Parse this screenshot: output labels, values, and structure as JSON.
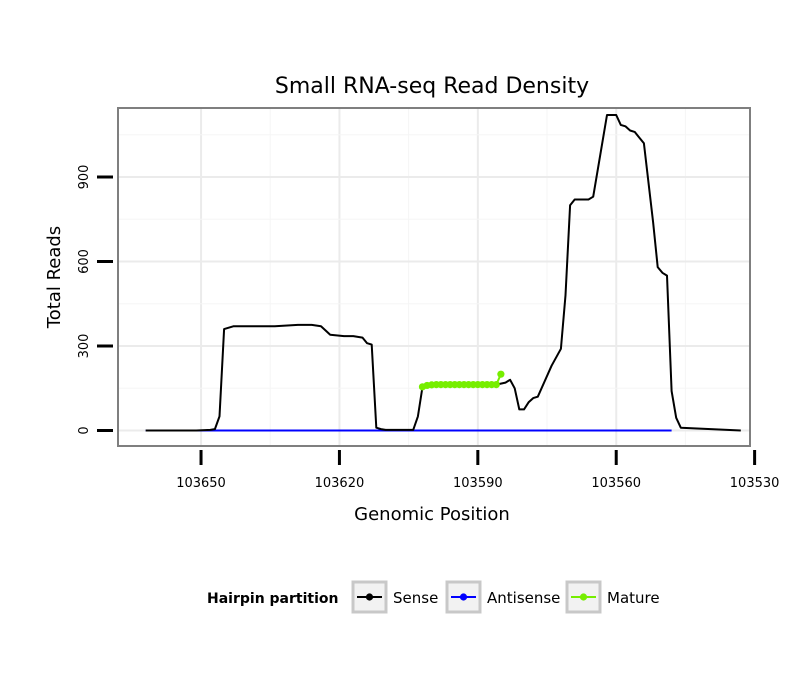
{
  "chart_data": {
    "type": "line",
    "title": "Small RNA-seq Read Density",
    "xlabel": "Genomic Position",
    "ylabel": "Total Reads",
    "x_reversed": true,
    "xlim": [
      103668,
      103531
    ],
    "ylim": [
      -55,
      1145
    ],
    "x_ticks": [
      103650,
      103620,
      103590,
      103560,
      103530
    ],
    "x_tick_labels": [
      "103650",
      "103620",
      "103590",
      "103560",
      "103530"
    ],
    "y_ticks": [
      0,
      300,
      600,
      900
    ],
    "y_tick_labels": [
      "0",
      "300",
      "600",
      "900"
    ],
    "grid": true,
    "legend": {
      "title": "Hairpin partition",
      "position": "bottom",
      "entries": [
        {
          "name": "Sense",
          "color": "#000000"
        },
        {
          "name": "Antisense",
          "color": "#0000ff"
        },
        {
          "name": "Mature",
          "color": "#76ee00"
        }
      ]
    },
    "series": [
      {
        "name": "Sense",
        "color": "#000000",
        "markers": false,
        "x": [
          103662,
          103651,
          103648,
          103647,
          103646,
          103645,
          103643,
          103640,
          103634,
          103629,
          103626,
          103624,
          103622,
          103619,
          103617,
          103615,
          103614,
          103613,
          103612,
          103611,
          103610,
          103605,
          103604,
          103603,
          103602,
          103601,
          103600,
          103599,
          103590,
          103588,
          103587,
          103586,
          103584,
          103583,
          103582,
          103581,
          103580,
          103579,
          103578,
          103577,
          103574,
          103572,
          103571,
          103570,
          103569,
          103568,
          103567,
          103566,
          103565,
          103562,
          103560,
          103559,
          103558,
          103557,
          103556,
          103555,
          103554,
          103552,
          103551,
          103550,
          103549,
          103548,
          103547,
          103546,
          103533
        ],
        "y": [
          0,
          0,
          2,
          5,
          50,
          360,
          370,
          370,
          370,
          375,
          375,
          370,
          340,
          335,
          335,
          330,
          310,
          305,
          10,
          5,
          2,
          2,
          2,
          50,
          155,
          160,
          162,
          163,
          163,
          163,
          163,
          163,
          170,
          180,
          150,
          75,
          75,
          100,
          115,
          120,
          230,
          290,
          480,
          800,
          820,
          820,
          820,
          820,
          830,
          1120,
          1120,
          1085,
          1080,
          1065,
          1060,
          1040,
          1020,
          740,
          580,
          560,
          550,
          140,
          45,
          10,
          0
        ]
      },
      {
        "name": "Antisense",
        "color": "#0000ff",
        "markers": false,
        "x": [
          103662,
          103548
        ],
        "y": [
          0,
          0
        ]
      },
      {
        "name": "Mature",
        "color": "#76ee00",
        "markers": true,
        "x": [
          103602,
          103601,
          103600,
          103599,
          103598,
          103597,
          103596,
          103595,
          103594,
          103593,
          103592,
          103591,
          103590,
          103589,
          103588,
          103587,
          103586,
          103585
        ],
        "y": [
          155,
          160,
          162,
          163,
          163,
          163,
          163,
          163,
          163,
          163,
          163,
          163,
          163,
          163,
          163,
          163,
          163,
          200
        ]
      }
    ]
  }
}
